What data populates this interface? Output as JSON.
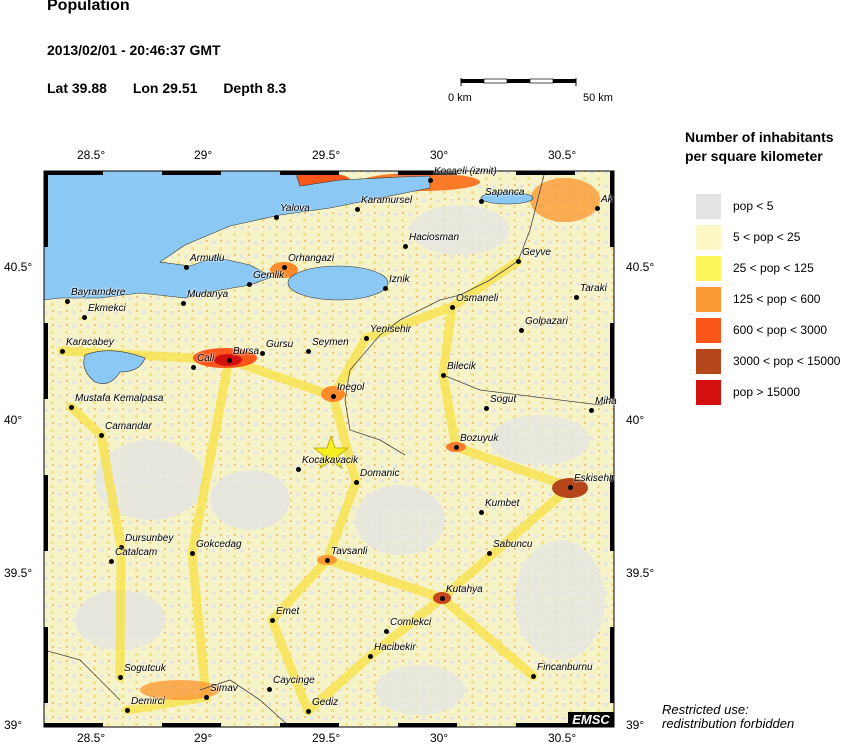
{
  "header": {
    "title": "Population",
    "datetime": "2013/02/01 - 20:46:37 GMT",
    "lat": "Lat 39.88",
    "lon": "Lon  29.51",
    "depth": "Depth  8.3"
  },
  "scale_bar": {
    "start_label": "0 km",
    "end_label": "50 km"
  },
  "legend": {
    "title_line1": "Number of inhabitants",
    "title_line2": "per square kilometer",
    "items": [
      {
        "label": "pop < 5",
        "color": "#e3e3e3"
      },
      {
        "label": "5 < pop < 25",
        "color": "#fbf8c6"
      },
      {
        "label": "25 < pop < 125",
        "color": "#fbf45a"
      },
      {
        "label": "125 < pop < 600",
        "color": "#fb9a34"
      },
      {
        "label": "600 < pop < 3000",
        "color": "#fb561a"
      },
      {
        "label": "3000 < pop < 15000",
        "color": "#b5461a"
      },
      {
        "label": "pop > 15000",
        "color": "#d40f10"
      }
    ]
  },
  "axes": {
    "lon_ticks": [
      "28.5°",
      "29°",
      "29.5°",
      "30°",
      "30.5°"
    ],
    "lat_ticks": [
      "40.5°",
      "40°",
      "39.5°",
      "39°"
    ]
  },
  "epicenter": {
    "icon": "star-icon",
    "color": "#f8f020"
  },
  "cities": [
    "Kocaeli (izmit)",
    "Sapanca",
    "Ak",
    "Karamursel",
    "Yalova",
    "Haciosman",
    "Geyve",
    "Armutlu",
    "Orhangazi",
    "Gemlik",
    "Iznik",
    "Taraki",
    "Bayramdere",
    "Mudanya",
    "Osmaneli",
    "Ekmekci",
    "Golpazari",
    "Yenisehir",
    "Karacabey",
    "Seymen",
    "Gursu",
    "Bursa",
    "Cali",
    "Bilecik",
    "Inegol",
    "Mustafa Kemalpasa",
    "Sogut",
    "Miha",
    "Camandar",
    "Bozuyuk",
    "Kocakavacik",
    "Domanic",
    "Eskisehir",
    "Kumbet",
    "Dursunbey",
    "Gokcedag",
    "Sabuncu",
    "Catalcam",
    "Tavsanli",
    "Kutahya",
    "Emet",
    "Comlekci",
    "Hacibekir",
    "Sogutcuk",
    "Fincanburnu",
    "Caycinge",
    "Simav",
    "Demirci",
    "Gediz"
  ],
  "colors": {
    "water": "#8cc8f4"
  },
  "footer": {
    "restricted_line1": "Restricted use:",
    "restricted_line2": "redistribution forbidden",
    "logo": "EMSC"
  }
}
